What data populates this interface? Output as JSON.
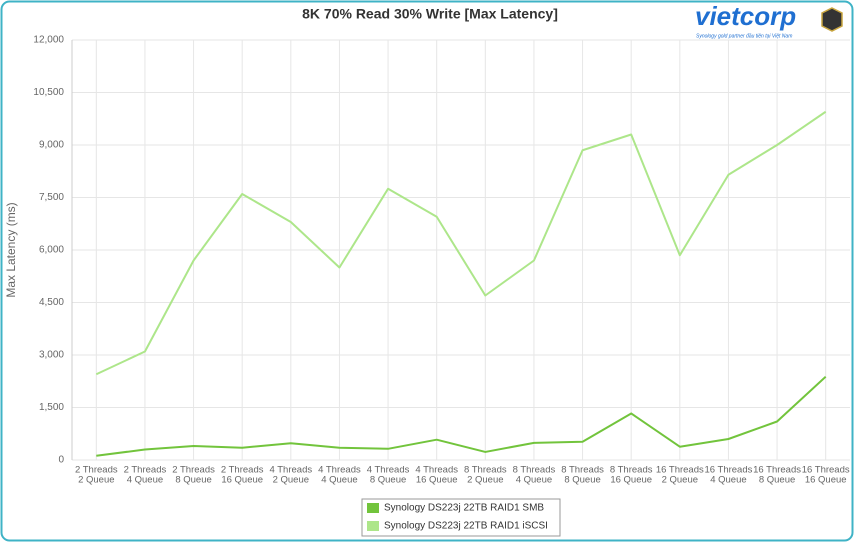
{
  "chart_data": {
    "type": "line",
    "title": "8K 70% Read 30% Write [Max Latency]",
    "y_label": "Max Latency (ms)",
    "logo": "vietcorp",
    "tagline": "Synology gold partner đầu tiên tại Việt Nam",
    "categories": [
      [
        "2 Threads",
        "2 Queue"
      ],
      [
        "2 Threads",
        "4 Queue"
      ],
      [
        "2 Threads",
        "8 Queue"
      ],
      [
        "2 Threads",
        "16 Queue"
      ],
      [
        "4 Threads",
        "2 Queue"
      ],
      [
        "4 Threads",
        "4 Queue"
      ],
      [
        "4 Threads",
        "8 Queue"
      ],
      [
        "4 Threads",
        "16 Queue"
      ],
      [
        "8 Threads",
        "2 Queue"
      ],
      [
        "8 Threads",
        "4 Queue"
      ],
      [
        "8 Threads",
        "8 Queue"
      ],
      [
        "8 Threads",
        "16 Queue"
      ],
      [
        "16 Threads",
        "2 Queue"
      ],
      [
        "16 Threads",
        "4 Queue"
      ],
      [
        "16 Threads",
        "8 Queue"
      ],
      [
        "16 Threads",
        "16 Queue"
      ]
    ],
    "series": [
      {
        "name": "Synology DS223j 22TB RAID1 SMB",
        "color": "#72c43c",
        "values": [
          120,
          300,
          400,
          350,
          480,
          350,
          320,
          580,
          230,
          490,
          520,
          1330,
          380,
          600,
          1100,
          2380
        ]
      },
      {
        "name": "Synology DS223j 22TB RAID1 iSCSI",
        "color": "#ade68a",
        "values": [
          2450,
          3100,
          5700,
          7600,
          6800,
          5500,
          7750,
          6950,
          4700,
          5700,
          8850,
          9300,
          5850,
          8150,
          9000,
          9950
        ]
      }
    ],
    "ylim": [
      0,
      12000
    ],
    "yticks": [
      0,
      {
        "value": 1500,
        "label": "1,500"
      },
      {
        "value": 3000,
        "label": "3,000"
      },
      {
        "value": 4500,
        "label": "4,500"
      },
      {
        "value": 6000,
        "label": "6,000"
      },
      {
        "value": 7500,
        "label": "7,500"
      },
      {
        "value": 9000,
        "label": "9,000"
      },
      {
        "value": 10500,
        "label": "10,500"
      },
      {
        "value": 12000,
        "label": "12,000"
      }
    ],
    "grid": true
  }
}
